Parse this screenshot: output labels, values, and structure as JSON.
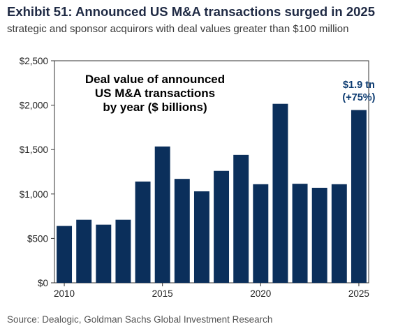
{
  "header": {
    "title": "Exhibit 51: Announced US M&A transactions surged in 2025",
    "subtitle": "strategic and sponsor acquirors with deal values greater than $100 million"
  },
  "footer": {
    "source": "Source: Dealogic, Goldman Sachs Global Investment Research"
  },
  "chart_data": {
    "type": "bar",
    "title": "",
    "in_chart_label_lines": [
      "Deal value of announced",
      "US M&A transactions",
      "by year ($ billions)"
    ],
    "xlabel": "",
    "ylabel": "",
    "categories": [
      2010,
      2011,
      2012,
      2013,
      2014,
      2015,
      2016,
      2017,
      2018,
      2019,
      2020,
      2021,
      2022,
      2023,
      2024,
      2025
    ],
    "values": [
      640,
      710,
      655,
      710,
      1140,
      1535,
      1170,
      1030,
      1260,
      1440,
      1110,
      2015,
      1115,
      1070,
      1110,
      1945
    ],
    "ylim": [
      0,
      2500
    ],
    "y_ticks": [
      0,
      500,
      1000,
      1500,
      2000,
      2500
    ],
    "y_tick_labels": [
      "$0",
      "$500",
      "$1,000",
      "$1,500",
      "$2,000",
      "$2,500"
    ],
    "x_ticks": [
      2010,
      2015,
      2020,
      2025
    ],
    "x_tick_labels": [
      "2010",
      "2015",
      "2020",
      "2025"
    ],
    "annotation": {
      "category": 2025,
      "lines": [
        "$1.9 tn",
        "(+75%)"
      ]
    },
    "grid": false,
    "legend": "none",
    "bar_color": "#0b2f5b",
    "annotation_color": "#0b3a70"
  }
}
